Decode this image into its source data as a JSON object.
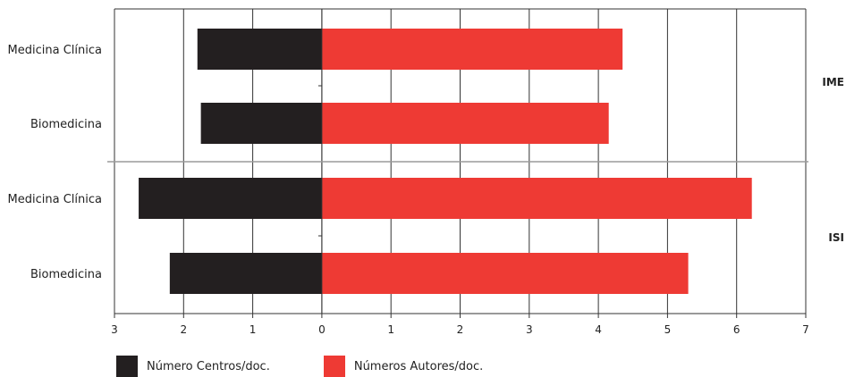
{
  "chart_data": {
    "type": "bar",
    "orientation": "horizontal-diverging",
    "categories": [
      "Medicina Clínica",
      "Biomedicina",
      "Medicina Clínica",
      "Biomedicina"
    ],
    "groups": [
      {
        "label": "IME",
        "categories_index": [
          0,
          1
        ]
      },
      {
        "label": "ISI",
        "categories_index": [
          2,
          3
        ]
      }
    ],
    "series": [
      {
        "name": "Número Centros/doc.",
        "color": "#231f20",
        "direction": "left",
        "values": [
          1.8,
          1.75,
          2.65,
          2.2
        ]
      },
      {
        "name": "Números Autores/doc.",
        "color": "#ee3a34",
        "direction": "right",
        "values": [
          4.35,
          4.15,
          6.22,
          5.3
        ]
      }
    ],
    "xticks": [
      "3",
      "2",
      "1",
      "0",
      "1",
      "2",
      "3",
      "4",
      "5",
      "6",
      "7"
    ],
    "xlim_left": 3,
    "xlim_right": 7,
    "grid": "vertical",
    "legend": "bottom-left"
  }
}
